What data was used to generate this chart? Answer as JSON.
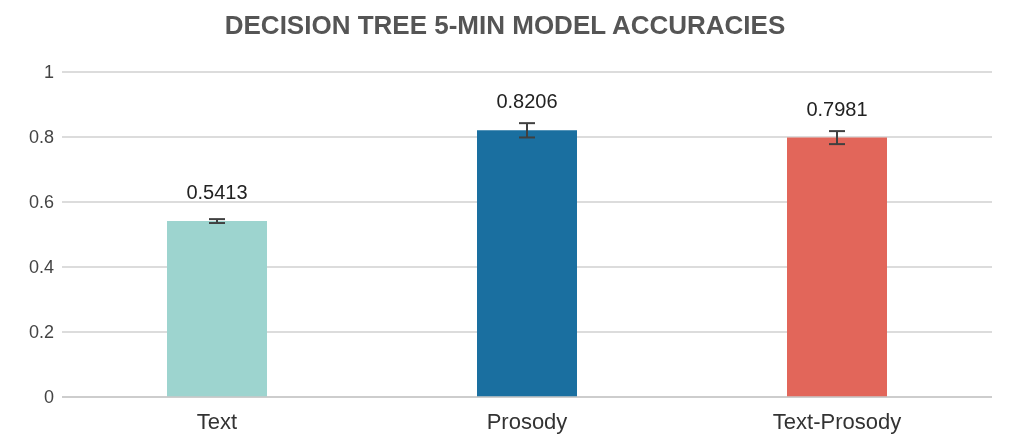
{
  "chart_data": {
    "type": "bar",
    "title": "DECISION TREE 5-MIN MODEL ACCURACIES",
    "categories": [
      "Text",
      "Prosody",
      "Text-Prosody"
    ],
    "values": [
      0.5413,
      0.8206,
      0.7981
    ],
    "colors": [
      "#9dd4cf",
      "#1a6fa0",
      "#e2665a"
    ],
    "errors": [
      0.006,
      0.022,
      0.02
    ],
    "data_labels": true,
    "ylim": [
      0,
      1
    ],
    "yticks": [
      0,
      0.2,
      0.4,
      0.6,
      0.8,
      1
    ],
    "grid": "y",
    "legend": false
  }
}
